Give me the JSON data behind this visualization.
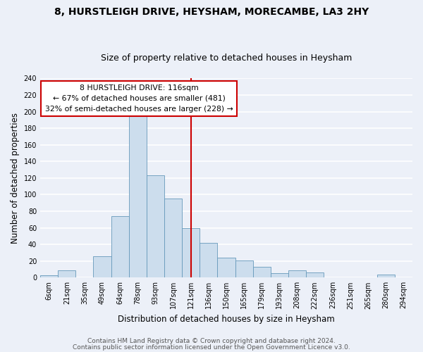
{
  "title": "8, HURSTLEIGH DRIVE, HEYSHAM, MORECAMBE, LA3 2HY",
  "subtitle": "Size of property relative to detached houses in Heysham",
  "xlabel": "Distribution of detached houses by size in Heysham",
  "ylabel": "Number of detached properties",
  "bin_labels": [
    "6sqm",
    "21sqm",
    "35sqm",
    "49sqm",
    "64sqm",
    "78sqm",
    "93sqm",
    "107sqm",
    "121sqm",
    "136sqm",
    "150sqm",
    "165sqm",
    "179sqm",
    "193sqm",
    "208sqm",
    "222sqm",
    "236sqm",
    "251sqm",
    "265sqm",
    "280sqm",
    "294sqm"
  ],
  "bin_centers": [
    0,
    1,
    2,
    3,
    4,
    5,
    6,
    7,
    8,
    9,
    10,
    11,
    12,
    13,
    14,
    15,
    16,
    17,
    18,
    19,
    20
  ],
  "bar_heights": [
    3,
    9,
    0,
    26,
    74,
    197,
    123,
    95,
    60,
    42,
    24,
    21,
    13,
    5,
    9,
    6,
    0,
    0,
    0,
    4,
    0
  ],
  "bar_color": "#ccdded",
  "bar_edge_color": "#6699bb",
  "property_line_x": 8.0,
  "annotation_title": "8 HURSTLEIGH DRIVE: 116sqm",
  "annotation_line1": "← 67% of detached houses are smaller (481)",
  "annotation_line2": "32% of semi-detached houses are larger (228) →",
  "annotation_box_color": "#ffffff",
  "annotation_box_edge": "#cc0000",
  "vline_color": "#cc0000",
  "ylim": [
    0,
    240
  ],
  "yticks": [
    0,
    20,
    40,
    60,
    80,
    100,
    120,
    140,
    160,
    180,
    200,
    220,
    240
  ],
  "footer1": "Contains HM Land Registry data © Crown copyright and database right 2024.",
  "footer2": "Contains public sector information licensed under the Open Government Licence v3.0.",
  "bg_color": "#ecf0f8",
  "plot_bg_color": "#ecf0f8",
  "grid_color": "#ffffff",
  "title_fontsize": 10,
  "subtitle_fontsize": 9,
  "axis_label_fontsize": 8.5,
  "tick_fontsize": 7,
  "footer_fontsize": 6.5,
  "ann_fontsize": 7.8
}
